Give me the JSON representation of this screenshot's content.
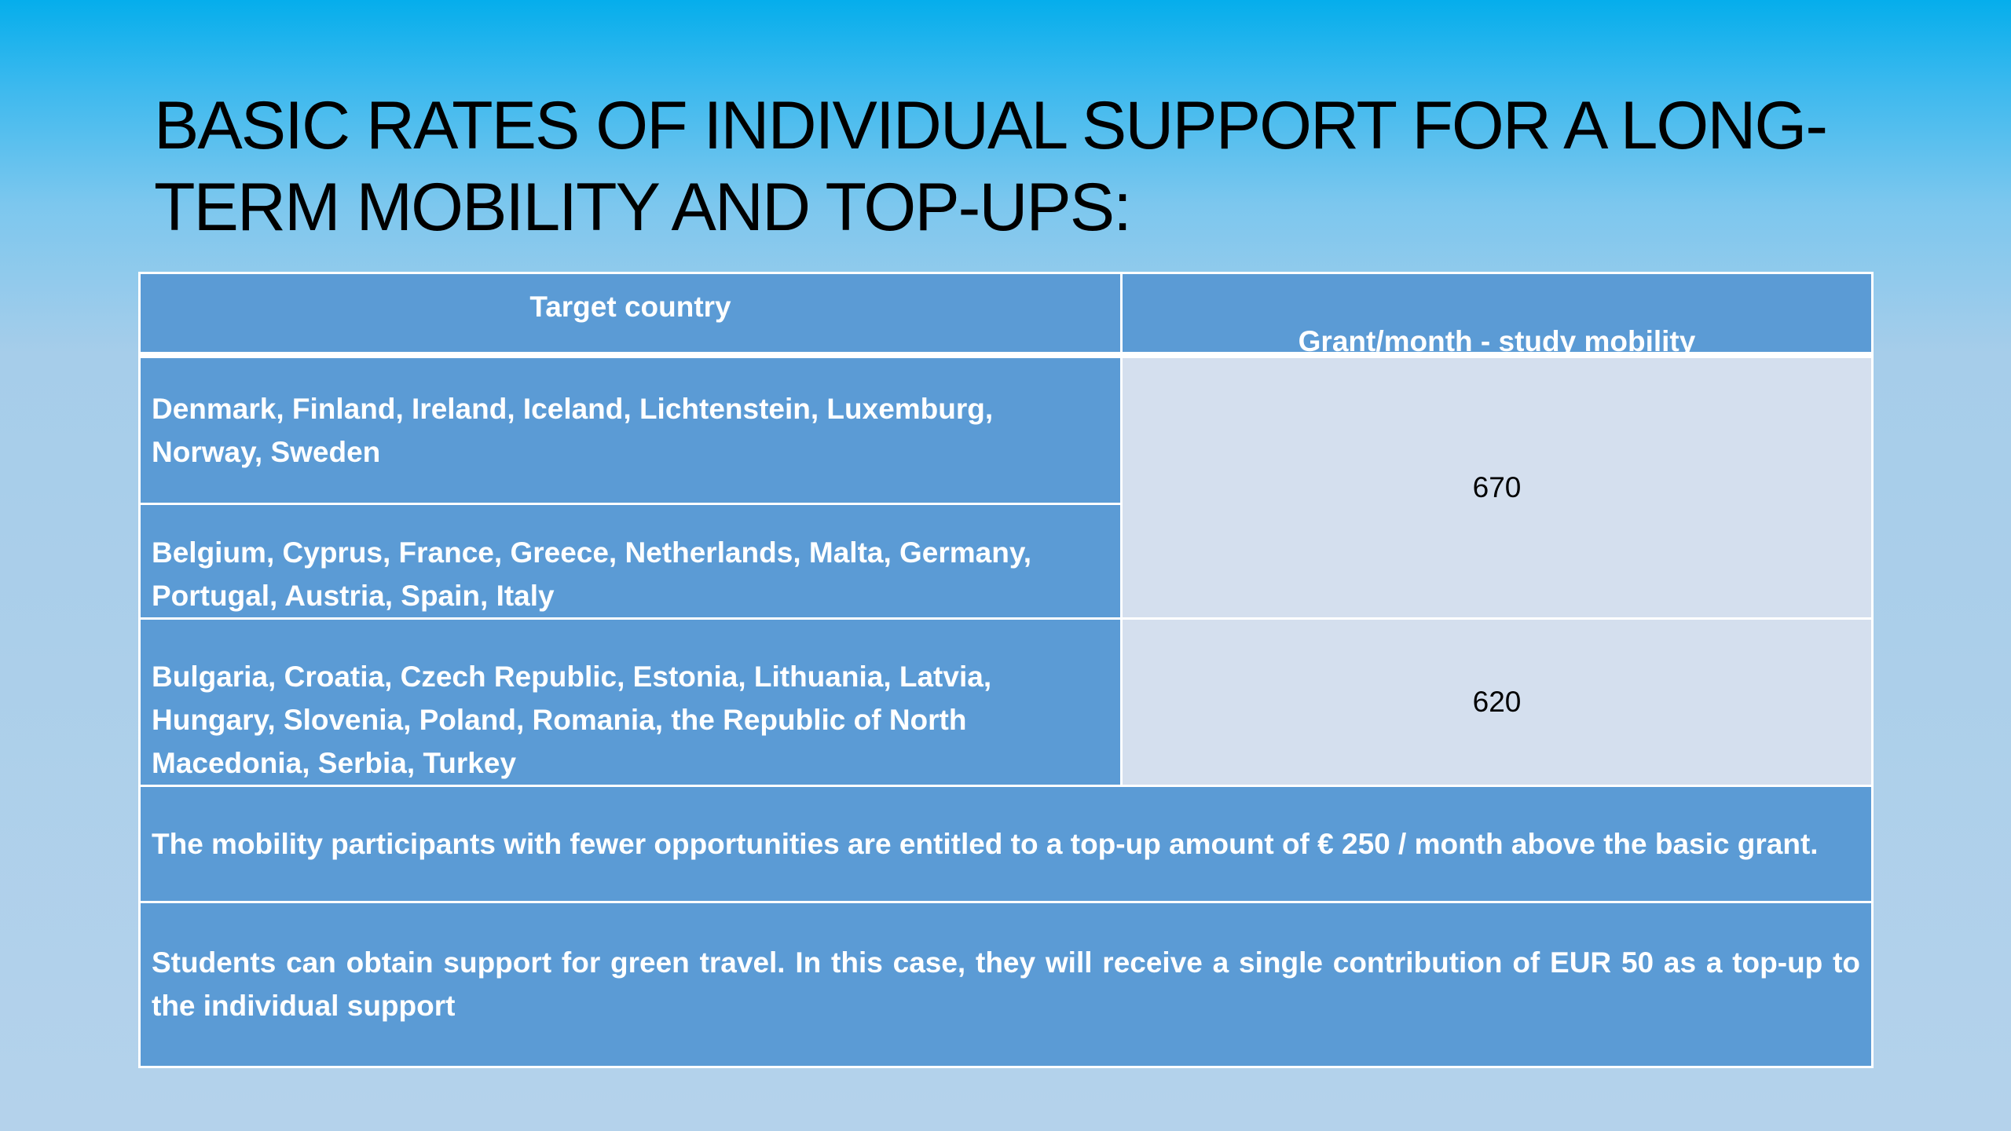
{
  "slide": {
    "title": "BASIC RATES OF INDIVIDUAL SUPPORT FOR A LONG-TERM MOBILITY AND TOP-UPS:"
  },
  "table": {
    "headers": {
      "country": "Target country",
      "grant": "Grant/month - study mobility"
    },
    "rows": [
      {
        "countries": "Denmark, Finland, Ireland, Iceland, Lichtenstein, Luxemburg, Norway, Sweden"
      },
      {
        "countries": "Belgium, Cyprus, France, Greece, Netherlands, Malta, Germany, Portugal, Austria, Spain, Italy"
      },
      {
        "countries": "Bulgaria, Croatia, Czech Republic, Estonia, Lithuania, Latvia, Hungary, Slovenia, Poland, Romania, the Republic of North Macedonia, Serbia, Turkey"
      }
    ],
    "grants": [
      "670",
      "620"
    ],
    "notes": [
      "The mobility participants with fewer opportunities are entitled to a top-up amount of € 250 / month above the basic grant.",
      "Students can obtain support for green travel. In this case, they will receive a single contribution of EUR 50 as a top-up to the individual support"
    ]
  }
}
